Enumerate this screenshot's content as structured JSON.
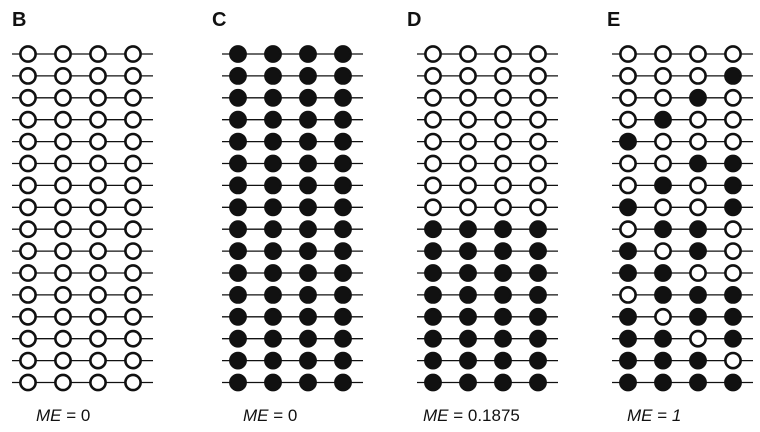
{
  "panels": [
    {
      "letter": "B",
      "caption_var": "ME",
      "caption_op": " = ",
      "caption_val": "0",
      "caption_val_italic": false,
      "rows": [
        [
          0,
          0,
          0,
          0
        ],
        [
          0,
          0,
          0,
          0
        ],
        [
          0,
          0,
          0,
          0
        ],
        [
          0,
          0,
          0,
          0
        ],
        [
          0,
          0,
          0,
          0
        ],
        [
          0,
          0,
          0,
          0
        ],
        [
          0,
          0,
          0,
          0
        ],
        [
          0,
          0,
          0,
          0
        ],
        [
          0,
          0,
          0,
          0
        ],
        [
          0,
          0,
          0,
          0
        ],
        [
          0,
          0,
          0,
          0
        ],
        [
          0,
          0,
          0,
          0
        ],
        [
          0,
          0,
          0,
          0
        ],
        [
          0,
          0,
          0,
          0
        ],
        [
          0,
          0,
          0,
          0
        ],
        [
          0,
          0,
          0,
          0
        ]
      ]
    },
    {
      "letter": "C",
      "caption_var": "ME",
      "caption_op": " = ",
      "caption_val": "0",
      "caption_val_italic": false,
      "rows": [
        [
          1,
          1,
          1,
          1
        ],
        [
          1,
          1,
          1,
          1
        ],
        [
          1,
          1,
          1,
          1
        ],
        [
          1,
          1,
          1,
          1
        ],
        [
          1,
          1,
          1,
          1
        ],
        [
          1,
          1,
          1,
          1
        ],
        [
          1,
          1,
          1,
          1
        ],
        [
          1,
          1,
          1,
          1
        ],
        [
          1,
          1,
          1,
          1
        ],
        [
          1,
          1,
          1,
          1
        ],
        [
          1,
          1,
          1,
          1
        ],
        [
          1,
          1,
          1,
          1
        ],
        [
          1,
          1,
          1,
          1
        ],
        [
          1,
          1,
          1,
          1
        ],
        [
          1,
          1,
          1,
          1
        ],
        [
          1,
          1,
          1,
          1
        ]
      ]
    },
    {
      "letter": "D",
      "caption_var": "ME",
      "caption_op": " = ",
      "caption_val": "0.1875",
      "caption_val_italic": false,
      "rows": [
        [
          0,
          0,
          0,
          0
        ],
        [
          0,
          0,
          0,
          0
        ],
        [
          0,
          0,
          0,
          0
        ],
        [
          0,
          0,
          0,
          0
        ],
        [
          0,
          0,
          0,
          0
        ],
        [
          0,
          0,
          0,
          0
        ],
        [
          0,
          0,
          0,
          0
        ],
        [
          0,
          0,
          0,
          0
        ],
        [
          1,
          1,
          1,
          1
        ],
        [
          1,
          1,
          1,
          1
        ],
        [
          1,
          1,
          1,
          1
        ],
        [
          1,
          1,
          1,
          1
        ],
        [
          1,
          1,
          1,
          1
        ],
        [
          1,
          1,
          1,
          1
        ],
        [
          1,
          1,
          1,
          1
        ],
        [
          1,
          1,
          1,
          1
        ]
      ]
    },
    {
      "letter": "E",
      "caption_var": "ME",
      "caption_op": " = ",
      "caption_val": "1",
      "caption_val_italic": true,
      "rows": [
        [
          0,
          0,
          0,
          0
        ],
        [
          0,
          0,
          0,
          1
        ],
        [
          0,
          0,
          1,
          0
        ],
        [
          0,
          1,
          0,
          0
        ],
        [
          1,
          0,
          0,
          0
        ],
        [
          0,
          0,
          1,
          1
        ],
        [
          0,
          1,
          0,
          1
        ],
        [
          1,
          0,
          0,
          1
        ],
        [
          0,
          1,
          1,
          0
        ],
        [
          1,
          0,
          1,
          0
        ],
        [
          1,
          1,
          0,
          0
        ],
        [
          0,
          1,
          1,
          1
        ],
        [
          1,
          0,
          1,
          1
        ],
        [
          1,
          1,
          0,
          1
        ],
        [
          1,
          1,
          1,
          0
        ],
        [
          1,
          1,
          1,
          1
        ]
      ]
    }
  ]
}
